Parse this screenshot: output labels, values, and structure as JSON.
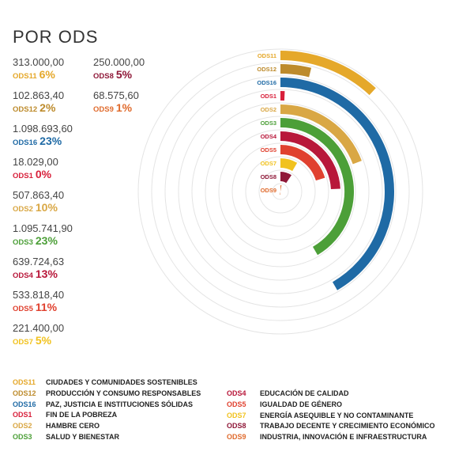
{
  "title": "POR ODS",
  "chart_data": {
    "type": "radial-bar",
    "series": [
      {
        "code": "ODS11",
        "value": 313000.0,
        "value_label": "313.000,00",
        "percent_label": "6%",
        "color": "#e5a82a",
        "name": "CIUDADES Y COMUNIDADES SOSTENIBLES"
      },
      {
        "code": "ODS12",
        "value": 102863.4,
        "value_label": "102.863,40",
        "percent_label": "2%",
        "color": "#bd8b2c",
        "name": "PRODUCCIÓN Y CONSUMO RESPONSABLES"
      },
      {
        "code": "ODS16",
        "value": 1098693.6,
        "value_label": "1.098.693,60",
        "percent_label": "23%",
        "color": "#1f6aa5",
        "name": "PAZ, JUSTICIA E INSTITUCIONES SÓLIDAS"
      },
      {
        "code": "ODS1",
        "value": 18029.0,
        "value_label": "18.029,00",
        "percent_label": "0%",
        "color": "#d8203b",
        "name": "FIN DE LA POBREZA"
      },
      {
        "code": "ODS2",
        "value": 507863.4,
        "value_label": "507.863,40",
        "percent_label": "10%",
        "color": "#d9a744",
        "name": "HAMBRE CERO"
      },
      {
        "code": "ODS3",
        "value": 1095741.9,
        "value_label": "1.095.741,90",
        "percent_label": "23%",
        "color": "#4c9f38",
        "name": "SALUD Y BIENESTAR"
      },
      {
        "code": "ODS4",
        "value": 639724.63,
        "value_label": "639.724,63",
        "percent_label": "13%",
        "color": "#b8173a",
        "name": "EDUCACIÓN DE CALIDAD"
      },
      {
        "code": "ODS5",
        "value": 533818.4,
        "value_label": "533.818,40",
        "percent_label": "11%",
        "color": "#e0412f",
        "name": "IGUALDAD DE GÉNERO"
      },
      {
        "code": "ODS7",
        "value": 221400.0,
        "value_label": "221.400,00",
        "percent_label": "5%",
        "color": "#f1c21e",
        "name": "ENERGÍA ASEQUIBLE Y NO CONTAMINANTE"
      },
      {
        "code": "ODS8",
        "value": 250000.0,
        "value_label": "250.000,00",
        "percent_label": "5%",
        "color": "#8f1838",
        "name": "TRABAJO DECENTE Y CRECIMIENTO ECONÓMICO"
      },
      {
        "code": "ODS9",
        "value": 68575.6,
        "value_label": "68.575,60",
        "percent_label": "1%",
        "color": "#e06b2d",
        "name": "INDUSTRIA, INNOVACIÓN E INFRAESTRUCTURA"
      }
    ],
    "grid": true,
    "legend_position": "bottom"
  }
}
